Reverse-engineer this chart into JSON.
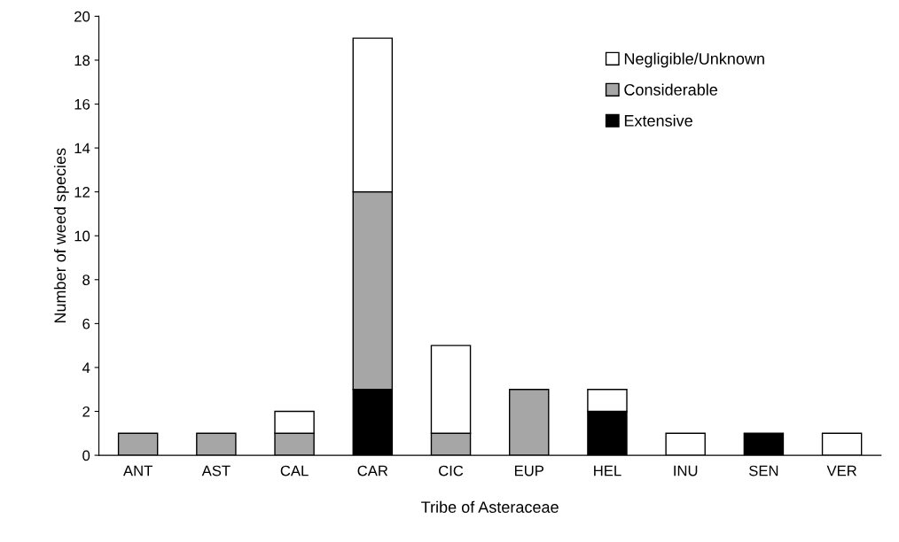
{
  "chart_data": {
    "type": "bar",
    "stacked": true,
    "xlabel": "Tribe of Asteraceae",
    "ylabel": "Number of weed species",
    "categories": [
      "ANT",
      "AST",
      "CAL",
      "CAR",
      "CIC",
      "EUP",
      "HEL",
      "INU",
      "SEN",
      "VER"
    ],
    "series": [
      {
        "name": "Extensive",
        "color": "#000000",
        "values": [
          0,
          0,
          0,
          3,
          0,
          0,
          2,
          0,
          1,
          0
        ]
      },
      {
        "name": "Considerable",
        "color": "#a6a6a6",
        "values": [
          1,
          1,
          1,
          9,
          1,
          3,
          0,
          0,
          0,
          0
        ]
      },
      {
        "name": "Negligible/Unknown",
        "color": "#ffffff",
        "values": [
          0,
          0,
          1,
          7,
          4,
          0,
          1,
          1,
          0,
          1
        ]
      }
    ],
    "ylim": [
      0,
      20
    ],
    "yticks": [
      0,
      2,
      4,
      6,
      8,
      10,
      12,
      14,
      16,
      18,
      20
    ],
    "grid": false,
    "legend": "top right"
  }
}
